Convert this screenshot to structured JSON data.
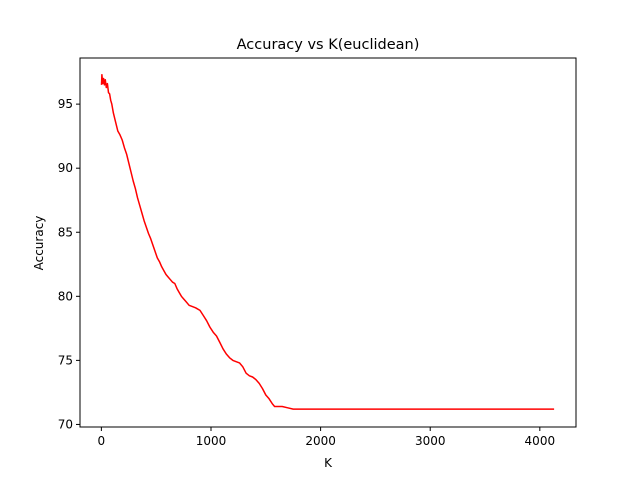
{
  "chart_data": {
    "type": "line",
    "title": "Accuracy vs K(euclidean)",
    "xlabel": "K",
    "ylabel": "Accuracy",
    "xlim": [
      -195,
      4330
    ],
    "ylim": [
      69.8,
      98.6
    ],
    "xticks": [
      0,
      1000,
      2000,
      3000,
      4000
    ],
    "yticks": [
      70,
      75,
      80,
      85,
      90,
      95
    ],
    "grid": false,
    "series": [
      {
        "color": "#ff0000",
        "points": [
          [
            1,
            96.5
          ],
          [
            5,
            97.3
          ],
          [
            12,
            96.6
          ],
          [
            20,
            97.0
          ],
          [
            28,
            96.5
          ],
          [
            36,
            96.9
          ],
          [
            45,
            96.3
          ],
          [
            55,
            96.6
          ],
          [
            65,
            95.9
          ],
          [
            75,
            95.8
          ],
          [
            85,
            95.3
          ],
          [
            95,
            95.0
          ],
          [
            110,
            94.3
          ],
          [
            130,
            93.6
          ],
          [
            150,
            92.9
          ],
          [
            170,
            92.6
          ],
          [
            190,
            92.2
          ],
          [
            210,
            91.6
          ],
          [
            230,
            91.1
          ],
          [
            250,
            90.4
          ],
          [
            270,
            89.7
          ],
          [
            290,
            89.0
          ],
          [
            310,
            88.4
          ],
          [
            330,
            87.7
          ],
          [
            350,
            87.1
          ],
          [
            370,
            86.5
          ],
          [
            390,
            85.9
          ],
          [
            410,
            85.4
          ],
          [
            430,
            84.9
          ],
          [
            450,
            84.5
          ],
          [
            470,
            84.0
          ],
          [
            490,
            83.5
          ],
          [
            510,
            83.0
          ],
          [
            530,
            82.7
          ],
          [
            550,
            82.3
          ],
          [
            570,
            82.0
          ],
          [
            590,
            81.7
          ],
          [
            610,
            81.5
          ],
          [
            630,
            81.3
          ],
          [
            650,
            81.1
          ],
          [
            670,
            81.0
          ],
          [
            690,
            80.6
          ],
          [
            710,
            80.3
          ],
          [
            730,
            80.0
          ],
          [
            750,
            79.8
          ],
          [
            770,
            79.6
          ],
          [
            800,
            79.3
          ],
          [
            830,
            79.2
          ],
          [
            860,
            79.1
          ],
          [
            900,
            78.9
          ],
          [
            930,
            78.5
          ],
          [
            960,
            78.1
          ],
          [
            990,
            77.6
          ],
          [
            1020,
            77.2
          ],
          [
            1050,
            76.9
          ],
          [
            1080,
            76.4
          ],
          [
            1110,
            75.9
          ],
          [
            1140,
            75.5
          ],
          [
            1170,
            75.2
          ],
          [
            1200,
            75.0
          ],
          [
            1230,
            74.9
          ],
          [
            1260,
            74.8
          ],
          [
            1290,
            74.5
          ],
          [
            1320,
            74.0
          ],
          [
            1350,
            73.8
          ],
          [
            1380,
            73.7
          ],
          [
            1410,
            73.5
          ],
          [
            1440,
            73.2
          ],
          [
            1470,
            72.8
          ],
          [
            1500,
            72.3
          ],
          [
            1530,
            72.0
          ],
          [
            1560,
            71.6
          ],
          [
            1580,
            71.4
          ],
          [
            1650,
            71.4
          ],
          [
            1700,
            71.3
          ],
          [
            1750,
            71.2
          ],
          [
            2000,
            71.2
          ],
          [
            3000,
            71.2
          ],
          [
            4000,
            71.2
          ],
          [
            4130,
            71.2
          ]
        ]
      }
    ]
  }
}
